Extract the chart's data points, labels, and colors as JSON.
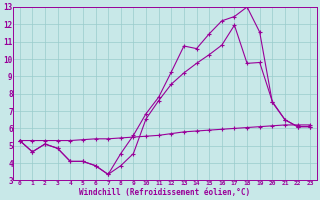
{
  "title": "",
  "xlabel": "Windchill (Refroidissement éolien,°C)",
  "ylabel": "",
  "xlim": [
    -0.5,
    23.5
  ],
  "ylim": [
    3,
    13
  ],
  "xticks": [
    0,
    1,
    2,
    3,
    4,
    5,
    6,
    7,
    8,
    9,
    10,
    11,
    12,
    13,
    14,
    15,
    16,
    17,
    18,
    19,
    20,
    21,
    22,
    23
  ],
  "yticks": [
    3,
    4,
    5,
    6,
    7,
    8,
    9,
    10,
    11,
    12,
    13
  ],
  "background_color": "#c8e8e8",
  "line_color": "#990099",
  "grid_color": "#99cccc",
  "line1_x": [
    0,
    1,
    2,
    3,
    4,
    5,
    6,
    7,
    8,
    9,
    10,
    11,
    12,
    13,
    14,
    15,
    16,
    17,
    18,
    19,
    20,
    21,
    22,
    23
  ],
  "line1_y": [
    5.3,
    4.65,
    5.1,
    4.85,
    4.1,
    4.1,
    3.85,
    3.35,
    3.85,
    4.55,
    6.55,
    7.6,
    8.55,
    9.2,
    9.75,
    10.25,
    10.8,
    11.95,
    9.75,
    9.8,
    7.55,
    6.5,
    6.1,
    6.1
  ],
  "line2_x": [
    0,
    1,
    2,
    3,
    4,
    5,
    6,
    7,
    8,
    9,
    10,
    11,
    12,
    13,
    14,
    15,
    16,
    17,
    18,
    19,
    20,
    21,
    22,
    23
  ],
  "line2_y": [
    5.3,
    4.65,
    5.1,
    4.85,
    4.1,
    4.1,
    3.85,
    3.35,
    4.55,
    5.6,
    6.85,
    7.8,
    9.25,
    10.75,
    10.6,
    11.45,
    12.2,
    12.45,
    13.0,
    11.55,
    7.5,
    6.5,
    6.1,
    6.1
  ],
  "line3_x": [
    0,
    1,
    2,
    3,
    4,
    5,
    6,
    7,
    8,
    9,
    10,
    11,
    12,
    13,
    14,
    15,
    16,
    17,
    18,
    19,
    20,
    21,
    22,
    23
  ],
  "line3_y": [
    5.3,
    5.3,
    5.3,
    5.3,
    5.3,
    5.35,
    5.4,
    5.4,
    5.45,
    5.5,
    5.55,
    5.6,
    5.7,
    5.8,
    5.85,
    5.9,
    5.95,
    6.0,
    6.05,
    6.1,
    6.15,
    6.2,
    6.2,
    6.2
  ]
}
